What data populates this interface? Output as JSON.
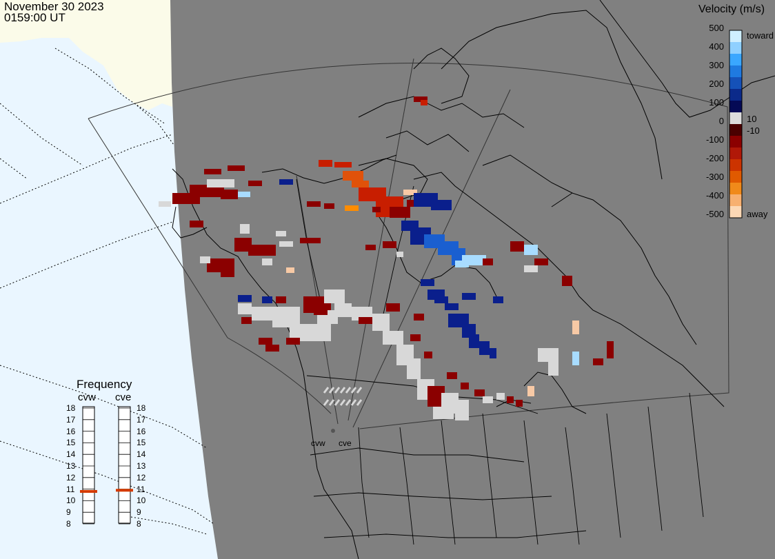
{
  "header": {
    "date": "November 30 2023",
    "time": "0159:00 UT"
  },
  "colorbar": {
    "title": "Velocity (m/s)",
    "ticks": [
      "500",
      "400",
      "300",
      "200",
      "100",
      "0",
      "-100",
      "-200",
      "-300",
      "-400",
      "-500"
    ],
    "inner_ticks": [
      "10",
      "-10"
    ],
    "label_toward": "toward",
    "label_away": "away",
    "colors_top_to_bottom": [
      "#cfefff",
      "#8fd0ff",
      "#3aa7ff",
      "#1f7ae0",
      "#1551b8",
      "#0b2a8a",
      "#050a55",
      "#dcdcdc",
      "#4a0000",
      "#8b0000",
      "#b01808",
      "#cc3300",
      "#e05a00",
      "#f08a1a",
      "#f7b070",
      "#fcd8b5"
    ]
  },
  "frequency": {
    "title": "Frequency",
    "radars": [
      "cvw",
      "cve"
    ],
    "ticks": [
      "18",
      "17",
      "16",
      "15",
      "14",
      "13",
      "12",
      "11",
      "10",
      "9",
      "8"
    ],
    "values_mhz": [
      10.8,
      10.9
    ],
    "marker_color": "#d43a00"
  },
  "map": {
    "radar_labels": [
      "cvw",
      "cve"
    ],
    "background_color": "#808080",
    "land_color": "#fbfbe9",
    "ocean_color": "#eaf6ff"
  }
}
